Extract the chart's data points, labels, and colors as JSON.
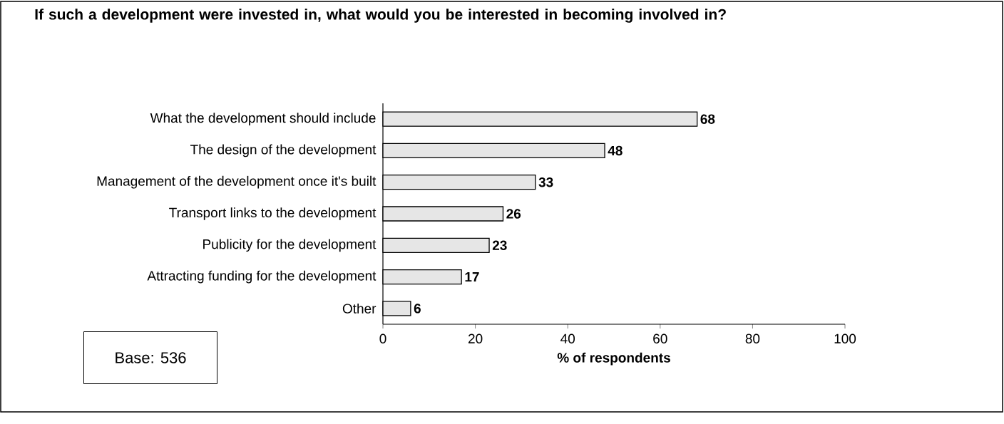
{
  "chart_data": {
    "type": "bar",
    "orientation": "horizontal",
    "title": "If such a development were invested in, what would you be interested in becoming involved in?",
    "xlabel": "% of respondents",
    "categories": [
      "What the development should include",
      "The design of the development",
      "Management of the development once it's built",
      "Transport links to the development",
      "Publicity for the development",
      "Attracting funding for the development",
      "Other"
    ],
    "values": [
      68,
      48,
      33,
      26,
      23,
      17,
      6
    ],
    "color": "#e6e6e6",
    "xlim": [
      0,
      100
    ],
    "xticks": [
      0,
      20,
      40,
      60,
      80,
      100
    ],
    "data_labels": true,
    "annotations": [
      "Base: 536"
    ]
  }
}
